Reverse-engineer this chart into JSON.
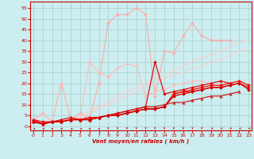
{
  "xlabel": "Vent moyen/en rafales ( km/h )",
  "background_color": "#cceef0",
  "grid_color": "#aacccc",
  "x": [
    0,
    1,
    2,
    3,
    4,
    5,
    6,
    7,
    8,
    9,
    10,
    11,
    12,
    13,
    14,
    15,
    16,
    17,
    18,
    19,
    20,
    21,
    22,
    23
  ],
  "ylim": [
    -2,
    58
  ],
  "xlim": [
    -0.3,
    23.3
  ],
  "yticks": [
    0,
    5,
    10,
    15,
    20,
    25,
    30,
    35,
    40,
    45,
    50,
    55
  ],
  "xticks": [
    0,
    1,
    2,
    3,
    4,
    5,
    6,
    7,
    8,
    9,
    10,
    11,
    12,
    13,
    14,
    15,
    16,
    17,
    18,
    19,
    20,
    21,
    22,
    23
  ],
  "series": [
    {
      "color": "#ffaaaa",
      "linewidth": 0.8,
      "marker": "D",
      "markersize": 2.0,
      "values": [
        3,
        6,
        2,
        20,
        3,
        6,
        3,
        20,
        48,
        52,
        52,
        55,
        52,
        14,
        35,
        34,
        42,
        48,
        42,
        40,
        40,
        40,
        null,
        null
      ]
    },
    {
      "color": "#ffbbbb",
      "linewidth": 0.8,
      "marker": "D",
      "markersize": 2.0,
      "values": [
        3,
        6,
        2,
        20,
        3,
        4,
        30,
        25,
        23,
        27,
        29,
        28,
        14,
        16,
        17,
        19,
        20,
        21,
        21,
        20,
        null,
        null,
        null,
        null
      ]
    },
    {
      "color": "#ffcccc",
      "linewidth": 0.8,
      "marker": null,
      "markersize": 0,
      "values": [
        3,
        2,
        2,
        3,
        3,
        5,
        7,
        9,
        11,
        14,
        16,
        18,
        20,
        22,
        24,
        26,
        28,
        30,
        32,
        33,
        35,
        37,
        39,
        40
      ]
    },
    {
      "color": "#ffcccc",
      "linewidth": 0.8,
      "marker": null,
      "markersize": 0,
      "values": [
        2,
        2,
        2,
        2,
        3,
        4,
        6,
        8,
        10,
        12,
        14,
        16,
        18,
        20,
        22,
        24,
        25,
        27,
        28,
        30,
        31,
        33,
        35,
        36
      ]
    },
    {
      "color": "#cc2222",
      "linewidth": 0.9,
      "marker": "^",
      "markersize": 2.5,
      "values": [
        2,
        1,
        2,
        2,
        3,
        3,
        3,
        4,
        5,
        6,
        7,
        8,
        9,
        9,
        10,
        11,
        11,
        12,
        13,
        14,
        14,
        15,
        16,
        null
      ]
    },
    {
      "color": "#dd1111",
      "linewidth": 0.9,
      "marker": "D",
      "markersize": 2.0,
      "values": [
        3,
        1,
        2,
        3,
        4,
        3,
        4,
        4,
        5,
        6,
        7,
        8,
        9,
        30,
        15,
        16,
        17,
        18,
        19,
        20,
        21,
        20,
        null,
        null
      ]
    },
    {
      "color": "#ff0000",
      "linewidth": 0.9,
      "marker": "D",
      "markersize": 2.0,
      "values": [
        2,
        1,
        2,
        2,
        3,
        3,
        3,
        4,
        5,
        5,
        6,
        7,
        8,
        8,
        9,
        15,
        16,
        17,
        18,
        19,
        19,
        20,
        21,
        19
      ]
    },
    {
      "color": "#ee1111",
      "linewidth": 0.9,
      "marker": "D",
      "markersize": 2.0,
      "values": [
        3,
        2,
        2,
        2,
        3,
        3,
        4,
        4,
        5,
        5,
        6,
        7,
        8,
        8,
        9,
        15,
        16,
        16,
        17,
        18,
        18,
        19,
        20,
        18
      ]
    },
    {
      "color": "#cc0000",
      "linewidth": 0.9,
      "marker": "D",
      "markersize": 2.0,
      "values": [
        2,
        1,
        2,
        2,
        3,
        3,
        3,
        4,
        5,
        5,
        6,
        7,
        8,
        8,
        9,
        14,
        15,
        16,
        17,
        18,
        18,
        19,
        20,
        17
      ]
    }
  ],
  "wind_arrows": {
    "color": "#cc2222",
    "angles": [
      225,
      225,
      270,
      270,
      225,
      225,
      270,
      270,
      0,
      0,
      0,
      0,
      0,
      0,
      0,
      0,
      0,
      0,
      0,
      315,
      315,
      315,
      315,
      315
    ]
  }
}
